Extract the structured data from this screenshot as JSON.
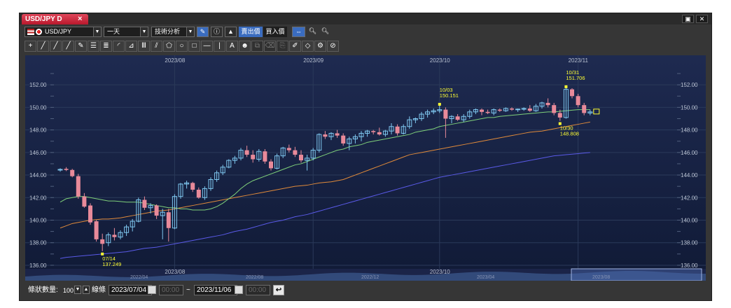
{
  "window": {
    "tab_title": "USD/JPY D",
    "tab_close": "×",
    "restore_glyph": "▣",
    "close_glyph": "✕"
  },
  "toolbar": {
    "symbol": "USD/JPY",
    "period": "一天",
    "analysis": "技術分析",
    "bid_label": "賣出價",
    "ask_label": "買入價",
    "zoom_in": "+",
    "zoom_out": "-",
    "info_icon": "info-icon",
    "pencil_icon": "pencil-icon",
    "chart_type_icon": "mountain-chart-icon",
    "stretch_icon": "stretch-icon"
  },
  "drawing_tools": [
    {
      "name": "crosshair-tool",
      "glyph": "+"
    },
    {
      "name": "line-tool",
      "glyph": "╱"
    },
    {
      "name": "ray-tool",
      "glyph": "╱"
    },
    {
      "name": "extended-line-tool",
      "glyph": "╱"
    },
    {
      "name": "pencil-tool",
      "glyph": "✎"
    },
    {
      "name": "parallel-lines-tool",
      "glyph": "☰"
    },
    {
      "name": "channel-tool",
      "glyph": "≣"
    },
    {
      "name": "fibonacci-arc-tool",
      "glyph": "◜"
    },
    {
      "name": "fan-tool",
      "glyph": "⊿"
    },
    {
      "name": "cycle-lines-tool",
      "glyph": "Ⅲ"
    },
    {
      "name": "pitchfork-tool",
      "glyph": "⫽"
    },
    {
      "name": "pentagon-tool",
      "glyph": "⬠"
    },
    {
      "name": "ellipse-tool",
      "glyph": "○"
    },
    {
      "name": "rectangle-tool",
      "glyph": "□"
    },
    {
      "name": "horizontal-line-tool",
      "glyph": "—"
    },
    {
      "name": "vertical-line-tool",
      "glyph": "|"
    },
    {
      "name": "text-tool",
      "glyph": "A"
    },
    {
      "name": "icon-tool",
      "glyph": "☻"
    },
    {
      "name": "clone-tool",
      "glyph": "⧉",
      "dim": true
    },
    {
      "name": "delete-tool",
      "glyph": "⌫",
      "dim": true
    },
    {
      "name": "copy-tool",
      "glyph": "⎘",
      "dim": true
    },
    {
      "name": "paint-tool",
      "glyph": "✐"
    },
    {
      "name": "eraser-tool",
      "glyph": "◇"
    },
    {
      "name": "settings-tool",
      "glyph": "⚙"
    },
    {
      "name": "magnet-tool",
      "glyph": "⊘"
    }
  ],
  "chart_data": {
    "type": "candlestick",
    "symbol": "USD/JPY",
    "timeframe": "daily",
    "ylim": [
      135.5,
      153.5
    ],
    "y_ticks": [
      "152.00",
      "150.00",
      "148.00",
      "146.00",
      "144.00",
      "142.00",
      "140.00",
      "138.00",
      "136.00"
    ],
    "y_tick_values": [
      152,
      150,
      148,
      146,
      144,
      142,
      140,
      138,
      136
    ],
    "x_top_labels": [
      {
        "label": "2023/08",
        "index": 19
      },
      {
        "label": "2023/09",
        "index": 42
      },
      {
        "label": "2023/10",
        "index": 63
      },
      {
        "label": "2023/11",
        "index": 86
      }
    ],
    "x_bottom_label": "2023/08",
    "x_bottom_label_2": "2023/10",
    "candles": [
      {
        "o": 144.45,
        "h": 144.6,
        "l": 144.3,
        "c": 144.5
      },
      {
        "o": 144.55,
        "h": 144.7,
        "l": 144.35,
        "c": 144.45
      },
      {
        "o": 144.45,
        "h": 144.55,
        "l": 143.8,
        "c": 143.9
      },
      {
        "o": 143.9,
        "h": 144.1,
        "l": 141.9,
        "c": 142.1
      },
      {
        "o": 142.1,
        "h": 142.4,
        "l": 141.1,
        "c": 141.2
      },
      {
        "o": 141.3,
        "h": 141.5,
        "l": 139.6,
        "c": 139.8
      },
      {
        "o": 139.9,
        "h": 140.0,
        "l": 138.1,
        "c": 138.3
      },
      {
        "o": 138.3,
        "h": 138.8,
        "l": 137.249,
        "c": 137.9
      },
      {
        "o": 138.0,
        "h": 138.9,
        "l": 137.7,
        "c": 138.7
      },
      {
        "o": 138.7,
        "h": 139.3,
        "l": 138.2,
        "c": 138.5
      },
      {
        "o": 138.5,
        "h": 139.1,
        "l": 138.3,
        "c": 138.9
      },
      {
        "o": 138.9,
        "h": 139.6,
        "l": 138.6,
        "c": 139.4
      },
      {
        "o": 139.4,
        "h": 140.1,
        "l": 139.0,
        "c": 139.9
      },
      {
        "o": 139.9,
        "h": 142.0,
        "l": 139.8,
        "c": 141.8
      },
      {
        "o": 141.8,
        "h": 142.1,
        "l": 140.9,
        "c": 141.1
      },
      {
        "o": 141.1,
        "h": 141.5,
        "l": 140.6,
        "c": 141.3
      },
      {
        "o": 141.3,
        "h": 141.4,
        "l": 140.1,
        "c": 140.4
      },
      {
        "o": 140.4,
        "h": 141.0,
        "l": 138.3,
        "c": 140.7
      },
      {
        "o": 140.7,
        "h": 141.0,
        "l": 138.1,
        "c": 139.3
      },
      {
        "o": 139.3,
        "h": 142.3,
        "l": 139.2,
        "c": 142.1
      },
      {
        "o": 142.1,
        "h": 143.3,
        "l": 141.9,
        "c": 143.2
      },
      {
        "o": 143.2,
        "h": 143.5,
        "l": 142.8,
        "c": 143.3
      },
      {
        "o": 143.3,
        "h": 143.4,
        "l": 142.5,
        "c": 142.7
      },
      {
        "o": 142.7,
        "h": 142.9,
        "l": 141.9,
        "c": 142.0
      },
      {
        "o": 142.0,
        "h": 143.0,
        "l": 141.8,
        "c": 142.8
      },
      {
        "o": 142.8,
        "h": 143.8,
        "l": 142.6,
        "c": 143.6
      },
      {
        "o": 143.6,
        "h": 144.4,
        "l": 143.4,
        "c": 144.2
      },
      {
        "o": 144.2,
        "h": 144.9,
        "l": 144.0,
        "c": 144.7
      },
      {
        "o": 144.7,
        "h": 145.4,
        "l": 144.6,
        "c": 145.3
      },
      {
        "o": 145.3,
        "h": 145.7,
        "l": 145.0,
        "c": 145.5
      },
      {
        "o": 145.5,
        "h": 146.4,
        "l": 145.3,
        "c": 146.2
      },
      {
        "o": 146.2,
        "h": 146.6,
        "l": 145.6,
        "c": 145.8
      },
      {
        "o": 145.8,
        "h": 146.2,
        "l": 145.1,
        "c": 145.4
      },
      {
        "o": 145.4,
        "h": 146.3,
        "l": 145.2,
        "c": 146.1
      },
      {
        "o": 146.1,
        "h": 146.3,
        "l": 145.0,
        "c": 145.2
      },
      {
        "o": 145.2,
        "h": 145.4,
        "l": 144.4,
        "c": 144.6
      },
      {
        "o": 144.6,
        "h": 145.9,
        "l": 144.5,
        "c": 145.7
      },
      {
        "o": 145.7,
        "h": 146.5,
        "l": 145.5,
        "c": 146.4
      },
      {
        "o": 146.4,
        "h": 146.7,
        "l": 146.0,
        "c": 146.2
      },
      {
        "o": 146.2,
        "h": 146.5,
        "l": 145.6,
        "c": 145.8
      },
      {
        "o": 145.8,
        "h": 146.2,
        "l": 145.1,
        "c": 145.3
      },
      {
        "o": 145.3,
        "h": 145.8,
        "l": 144.4,
        "c": 145.5
      },
      {
        "o": 145.5,
        "h": 146.4,
        "l": 145.3,
        "c": 146.2
      },
      {
        "o": 146.2,
        "h": 147.7,
        "l": 146.0,
        "c": 147.6
      },
      {
        "o": 147.6,
        "h": 147.9,
        "l": 147.2,
        "c": 147.4
      },
      {
        "o": 147.4,
        "h": 147.8,
        "l": 147.1,
        "c": 147.7
      },
      {
        "o": 147.7,
        "h": 148.0,
        "l": 147.3,
        "c": 147.5
      },
      {
        "o": 147.5,
        "h": 147.7,
        "l": 146.6,
        "c": 146.8
      },
      {
        "o": 146.8,
        "h": 147.4,
        "l": 146.2,
        "c": 147.2
      },
      {
        "o": 147.2,
        "h": 147.6,
        "l": 146.8,
        "c": 147.4
      },
      {
        "o": 147.4,
        "h": 147.9,
        "l": 147.0,
        "c": 147.7
      },
      {
        "o": 147.7,
        "h": 148.0,
        "l": 147.4,
        "c": 147.9
      },
      {
        "o": 147.9,
        "h": 148.0,
        "l": 147.6,
        "c": 147.8
      },
      {
        "o": 147.8,
        "h": 148.2,
        "l": 147.5,
        "c": 147.6
      },
      {
        "o": 147.6,
        "h": 148.0,
        "l": 147.4,
        "c": 147.9
      },
      {
        "o": 147.9,
        "h": 148.6,
        "l": 147.6,
        "c": 148.3
      },
      {
        "o": 148.3,
        "h": 148.5,
        "l": 147.5,
        "c": 147.7
      },
      {
        "o": 147.7,
        "h": 148.5,
        "l": 147.6,
        "c": 148.3
      },
      {
        "o": 148.3,
        "h": 149.2,
        "l": 148.1,
        "c": 148.9
      },
      {
        "o": 148.9,
        "h": 149.1,
        "l": 148.6,
        "c": 149.0
      },
      {
        "o": 149.0,
        "h": 149.6,
        "l": 148.8,
        "c": 149.4
      },
      {
        "o": 149.4,
        "h": 149.8,
        "l": 149.1,
        "c": 149.6
      },
      {
        "o": 149.6,
        "h": 149.9,
        "l": 149.4,
        "c": 149.7
      },
      {
        "o": 149.7,
        "h": 150.151,
        "l": 149.5,
        "c": 149.8
      },
      {
        "o": 149.8,
        "h": 150.0,
        "l": 147.3,
        "c": 149.0
      },
      {
        "o": 149.0,
        "h": 149.3,
        "l": 148.6,
        "c": 149.2
      },
      {
        "o": 149.2,
        "h": 149.4,
        "l": 148.8,
        "c": 148.9
      },
      {
        "o": 148.9,
        "h": 149.4,
        "l": 148.7,
        "c": 149.2
      },
      {
        "o": 149.2,
        "h": 149.8,
        "l": 149.0,
        "c": 149.6
      },
      {
        "o": 149.6,
        "h": 149.9,
        "l": 149.4,
        "c": 149.8
      },
      {
        "o": 149.8,
        "h": 149.9,
        "l": 149.3,
        "c": 149.6
      },
      {
        "o": 149.6,
        "h": 149.8,
        "l": 149.4,
        "c": 149.5
      },
      {
        "o": 149.5,
        "h": 149.9,
        "l": 149.3,
        "c": 149.8
      },
      {
        "o": 149.8,
        "h": 149.9,
        "l": 149.6,
        "c": 149.7
      },
      {
        "o": 149.7,
        "h": 150.0,
        "l": 149.6,
        "c": 149.9
      },
      {
        "o": 149.9,
        "h": 150.0,
        "l": 149.7,
        "c": 149.8
      },
      {
        "o": 149.8,
        "h": 149.9,
        "l": 149.6,
        "c": 149.85
      },
      {
        "o": 149.85,
        "h": 150.0,
        "l": 149.7,
        "c": 149.9
      },
      {
        "o": 149.9,
        "h": 150.2,
        "l": 149.6,
        "c": 149.7
      },
      {
        "o": 149.7,
        "h": 150.3,
        "l": 149.6,
        "c": 150.1
      },
      {
        "o": 150.1,
        "h": 150.5,
        "l": 149.9,
        "c": 150.4
      },
      {
        "o": 150.4,
        "h": 150.8,
        "l": 150.0,
        "c": 150.2
      },
      {
        "o": 150.2,
        "h": 150.4,
        "l": 149.3,
        "c": 149.5
      },
      {
        "o": 149.5,
        "h": 149.8,
        "l": 148.808,
        "c": 149.1
      },
      {
        "o": 149.1,
        "h": 151.706,
        "l": 149.0,
        "c": 151.6
      },
      {
        "o": 151.6,
        "h": 151.7,
        "l": 150.8,
        "c": 151.0
      },
      {
        "o": 151.0,
        "h": 151.2,
        "l": 150.0,
        "c": 150.2
      },
      {
        "o": 150.2,
        "h": 150.4,
        "l": 149.3,
        "c": 149.5
      },
      {
        "o": 149.5,
        "h": 149.8,
        "l": 149.3,
        "c": 149.6
      }
    ],
    "ma_short": [
      141.6,
      141.9,
      142.0,
      142.1,
      142.1,
      142.0,
      141.9,
      141.8,
      141.7,
      141.7,
      141.65,
      141.6,
      141.6,
      141.6,
      141.5,
      141.4,
      141.3,
      141.2,
      141.1,
      141.1,
      141.0,
      141.0,
      140.9,
      140.9,
      140.9,
      141.0,
      141.2,
      141.5,
      141.9,
      142.3,
      142.8,
      143.2,
      143.5,
      143.7,
      143.9,
      144.1,
      144.3,
      144.5,
      144.7,
      144.9,
      145.0,
      145.2,
      145.4,
      145.6,
      145.8,
      146.0,
      146.2,
      146.3,
      146.5,
      146.6,
      146.7,
      146.9,
      147.0,
      147.1,
      147.2,
      147.3,
      147.4,
      147.5,
      147.6,
      147.8,
      147.9,
      148.0,
      148.1,
      148.3,
      148.4,
      148.5,
      148.6,
      148.7,
      148.8,
      148.9,
      149.0,
      149.1,
      149.1,
      149.2,
      149.25,
      149.3,
      149.35,
      149.4,
      149.45,
      149.5,
      149.55,
      149.6,
      149.6,
      149.65,
      149.7,
      149.75,
      149.8,
      149.8,
      149.8
    ],
    "ma_mid": [
      139.3,
      139.5,
      139.7,
      139.8,
      139.9,
      140.0,
      140.05,
      140.1,
      140.1,
      140.15,
      140.2,
      140.3,
      140.4,
      140.5,
      140.6,
      140.7,
      140.8,
      140.85,
      140.9,
      141.0,
      141.1,
      141.2,
      141.3,
      141.4,
      141.5,
      141.6,
      141.7,
      141.8,
      141.9,
      142.0,
      142.1,
      142.2,
      142.3,
      142.4,
      142.5,
      142.6,
      142.7,
      142.8,
      142.9,
      143.0,
      143.05,
      143.1,
      143.2,
      143.3,
      143.35,
      143.4,
      143.5,
      143.6,
      143.8,
      144.0,
      144.2,
      144.4,
      144.6,
      144.8,
      145.0,
      145.2,
      145.4,
      145.6,
      145.8,
      145.9,
      146.0,
      146.1,
      146.2,
      146.3,
      146.4,
      146.5,
      146.6,
      146.7,
      146.8,
      146.9,
      147.0,
      147.1,
      147.2,
      147.3,
      147.4,
      147.5,
      147.6,
      147.7,
      147.8,
      147.85,
      147.9,
      148.0,
      148.1,
      148.2,
      148.3,
      148.4,
      148.5,
      148.6,
      148.7
    ],
    "ma_long": [
      136.6,
      136.7,
      136.75,
      136.8,
      136.85,
      136.9,
      136.95,
      137.0,
      137.05,
      137.1,
      137.15,
      137.2,
      137.3,
      137.4,
      137.5,
      137.55,
      137.6,
      137.7,
      137.8,
      137.9,
      138.0,
      138.1,
      138.2,
      138.3,
      138.4,
      138.5,
      138.6,
      138.7,
      138.85,
      139.0,
      139.1,
      139.2,
      139.35,
      139.5,
      139.65,
      139.8,
      139.9,
      140.0,
      140.15,
      140.3,
      140.4,
      140.5,
      140.65,
      140.8,
      140.95,
      141.1,
      141.25,
      141.4,
      141.55,
      141.7,
      141.85,
      142.0,
      142.15,
      142.3,
      142.45,
      142.6,
      142.75,
      142.9,
      143.05,
      143.2,
      143.35,
      143.5,
      143.65,
      143.8,
      143.9,
      144.0,
      144.1,
      144.2,
      144.3,
      144.4,
      144.5,
      144.6,
      144.7,
      144.8,
      144.9,
      145.0,
      145.1,
      145.2,
      145.3,
      145.4,
      145.5,
      145.6,
      145.7,
      145.75,
      145.8,
      145.85,
      145.9,
      145.95,
      146.0
    ],
    "annotations": [
      {
        "date": "07/14",
        "value": "137.249",
        "index": 7,
        "price": 137.249,
        "below": true
      },
      {
        "date": "10/03",
        "value": "150.151",
        "index": 63,
        "price": 150.151,
        "below": false
      },
      {
        "date": "10/30",
        "value": "148.808",
        "index": 83,
        "price": 148.808,
        "below": true
      },
      {
        "date": "10/31",
        "value": "151.706",
        "index": 84,
        "price": 151.706,
        "below": false
      }
    ],
    "navigator_labels": [
      "2022/04",
      "2022/08",
      "2022/12",
      "2023/04",
      "2023/08"
    ],
    "colors": {
      "background": "#142040",
      "up": "#7fc8f0",
      "down": "#e88a9a",
      "ma_short": "#7fd07a",
      "ma_mid": "#e08a3a",
      "ma_long": "#5a5ae8",
      "annotation": "#ffff33",
      "grid": "#2b3a5a",
      "tick_text": "#b8c0d0"
    }
  },
  "bottom": {
    "count_label": "條狀數量:",
    "count_value": "100",
    "line_label": "線條",
    "start_date": "2023/07/04",
    "start_time": "00:00",
    "range_sep": "~",
    "end_date": "2023/11/06",
    "end_time": "00:00",
    "undo_glyph": "↩"
  }
}
